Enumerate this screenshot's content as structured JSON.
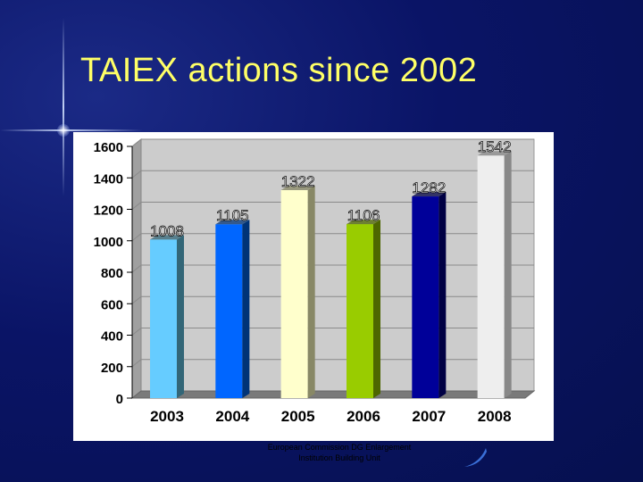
{
  "slide": {
    "title": "TAIEX actions since 2002",
    "footer_line1": "European Commission  DG Enlargement",
    "footer_line2": "Institution Building Unit"
  },
  "chart_data": {
    "type": "bar",
    "title": "",
    "xlabel": "",
    "ylabel": "",
    "categories": [
      "2003",
      "2004",
      "2005",
      "2006",
      "2007",
      "2008"
    ],
    "values": [
      1008,
      1105,
      1322,
      1106,
      1282,
      1542
    ],
    "ylim": [
      0,
      1600
    ],
    "yticks": [
      0,
      200,
      400,
      600,
      800,
      1000,
      1200,
      1400,
      1600
    ],
    "grid": true,
    "legend": "none",
    "bar_colors": [
      "#66ccff",
      "#0066ff",
      "#ffffcc",
      "#99cc00",
      "#000099",
      "#eeeeee"
    ],
    "bar_side_colors": [
      "#336677",
      "#003377",
      "#888866",
      "#4d6600",
      "#000044",
      "#888888"
    ]
  }
}
